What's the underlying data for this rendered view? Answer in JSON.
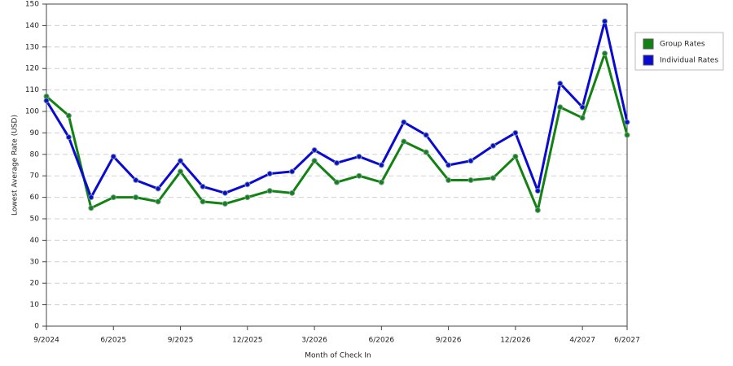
{
  "chart_data": {
    "type": "line",
    "x_label": "Month of Check In",
    "y_label": "Lowest Average Rate (USD)",
    "categories": [
      "9/2024",
      null,
      null,
      "6/2025",
      null,
      null,
      "9/2025",
      null,
      null,
      "12/2025",
      null,
      null,
      "3/2026",
      null,
      null,
      "6/2026",
      null,
      null,
      "9/2026",
      null,
      null,
      "12/2026",
      null,
      null,
      "4/2027",
      null,
      "6/2027"
    ],
    "series": [
      {
        "name": "Group Rates",
        "color": "#128212",
        "values": [
          107,
          98,
          55,
          60,
          60,
          58,
          72,
          58,
          57,
          60,
          63,
          62,
          77,
          67,
          70,
          67,
          86,
          81,
          68,
          68,
          69,
          79,
          54,
          102,
          97,
          127,
          89
        ]
      },
      {
        "name": "Individual Rates",
        "color": "#0a0ad2",
        "values": [
          105,
          88,
          60,
          79,
          68,
          64,
          77,
          65,
          62,
          66,
          71,
          72,
          82,
          76,
          79,
          75,
          95,
          89,
          75,
          77,
          84,
          90,
          63,
          113,
          102,
          142,
          95
        ]
      }
    ],
    "ylim": [
      0,
      150
    ],
    "yticks": [
      0,
      10,
      20,
      30,
      40,
      50,
      60,
      70,
      80,
      90,
      100,
      110,
      120,
      130,
      140,
      150
    ],
    "grid": true,
    "legend": "right"
  }
}
